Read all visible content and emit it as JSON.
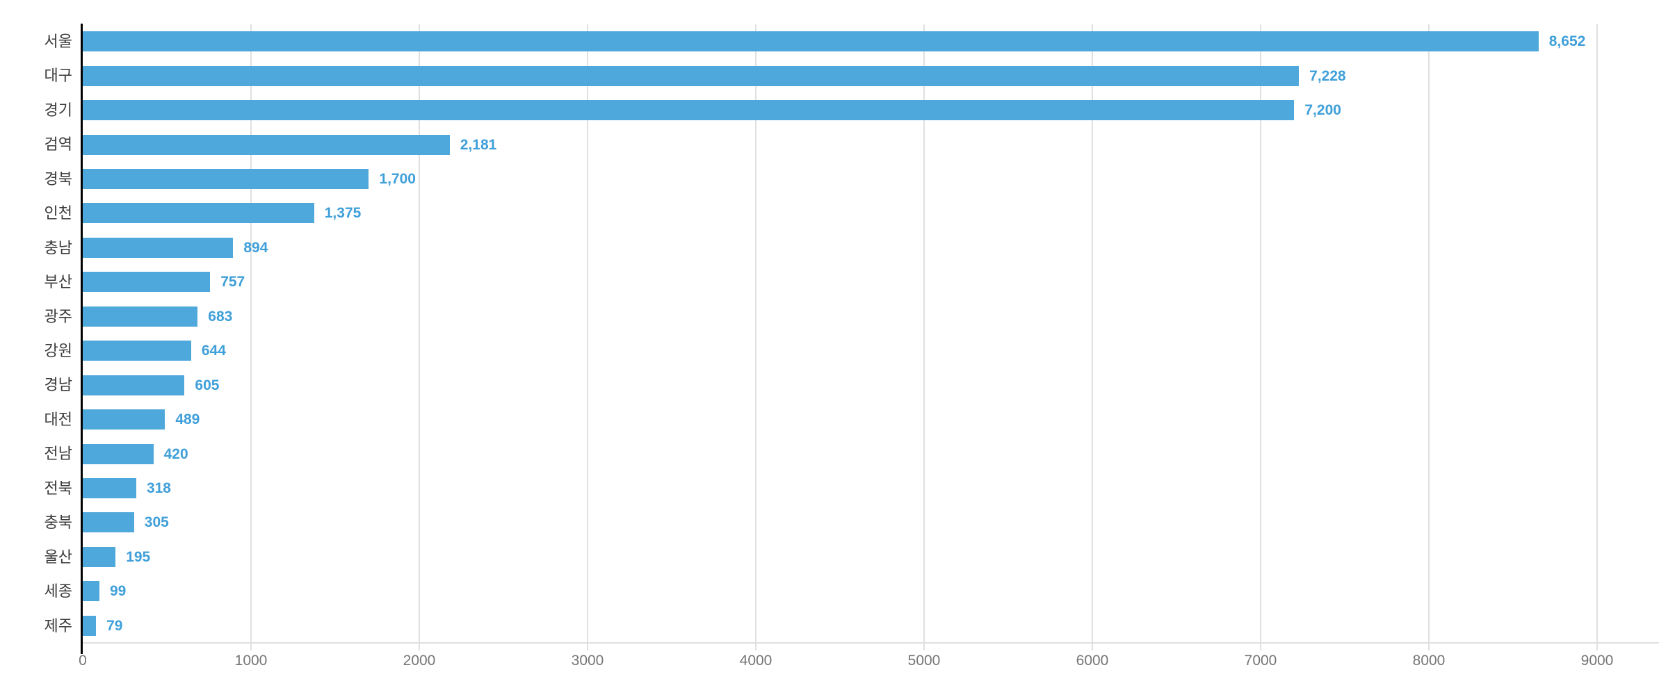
{
  "chart_data": {
    "type": "bar",
    "orientation": "horizontal",
    "title": "",
    "xlabel": "",
    "ylabel": "",
    "categories": [
      "서울",
      "대구",
      "경기",
      "검역",
      "경북",
      "인천",
      "충남",
      "부산",
      "광주",
      "강원",
      "경남",
      "대전",
      "전남",
      "전북",
      "충북",
      "울산",
      "세종",
      "제주"
    ],
    "values": [
      8652,
      7228,
      7200,
      2181,
      1700,
      1375,
      894,
      757,
      683,
      644,
      605,
      489,
      420,
      318,
      305,
      195,
      99,
      79
    ],
    "value_labels": [
      "8,652",
      "7,228",
      "7,200",
      "2,181",
      "1,700",
      "1,375",
      "894",
      "757",
      "683",
      "644",
      "605",
      "489",
      "420",
      "318",
      "305",
      "195",
      "99",
      "79"
    ],
    "xlim": [
      0,
      9000
    ],
    "x_ticks": [
      0,
      1000,
      2000,
      3000,
      4000,
      5000,
      6000,
      7000,
      8000,
      9000
    ],
    "x_tick_labels": [
      "0",
      "1000",
      "2000",
      "3000",
      "4000",
      "5000",
      "6000",
      "7000",
      "8000",
      "9000"
    ],
    "grid": true,
    "legend": false,
    "colors": {
      "bar": "#4FA8DB",
      "value_label": "#3F9FD9",
      "category_label": "#3A3A3A",
      "tick_label": "#757575",
      "gridline": "#E0E0E0",
      "axis_line": "#000000"
    }
  }
}
